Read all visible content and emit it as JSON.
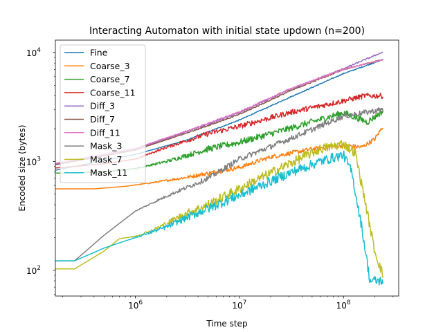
{
  "chart_data": {
    "type": "line",
    "title": "Interacting Automaton with initial state updown (n=200)",
    "xlabel": "Time step",
    "ylabel": "Encoded size (bytes)",
    "xscale": "log",
    "yscale": "log",
    "xlim": [
      170000,
      340000000
    ],
    "ylim": [
      58,
      13000
    ],
    "xticks": [
      {
        "value": 1000000,
        "base": "10",
        "exp": "6"
      },
      {
        "value": 10000000,
        "base": "10",
        "exp": "7"
      },
      {
        "value": 100000000,
        "base": "10",
        "exp": "8"
      }
    ],
    "yticks": [
      {
        "value": 100,
        "base": "10",
        "exp": "2"
      },
      {
        "value": 1000,
        "base": "10",
        "exp": "3"
      },
      {
        "value": 10000,
        "base": "10",
        "exp": "4"
      }
    ],
    "legend_position": "upper-left",
    "grid": false,
    "series": [
      {
        "name": "Fine",
        "color": "#1f77b4",
        "noise": 0.004,
        "x": [
          170000,
          1000000,
          3000000,
          10000000,
          30000000,
          100000000,
          240000000
        ],
        "y": [
          830,
          1160,
          1550,
          2400,
          3850,
          6400,
          8600
        ]
      },
      {
        "name": "Coarse_3",
        "color": "#ff7f0e",
        "noise": 0.02,
        "x": [
          170000,
          400000,
          800000,
          1500000,
          3000000,
          10000000,
          20000000,
          50000000,
          100000000,
          150000000,
          200000000,
          240000000
        ],
        "y": [
          560,
          560,
          590,
          640,
          710,
          880,
          1100,
          1300,
          1400,
          1350,
          1600,
          2100
        ]
      },
      {
        "name": "Coarse_7",
        "color": "#2ca02c",
        "noise": 0.03,
        "x": [
          170000,
          500000,
          1000000,
          2000000,
          5000000,
          10000000,
          30000000,
          100000000,
          170000000,
          240000000
        ],
        "y": [
          780,
          800,
          860,
          1000,
          1300,
          1500,
          2000,
          2800,
          2300,
          2900
        ]
      },
      {
        "name": "Coarse_11",
        "color": "#d62728",
        "noise": 0.025,
        "x": [
          170000,
          500000,
          1000000,
          2000000,
          5000000,
          10000000,
          30000000,
          100000000,
          160000000,
          240000000
        ],
        "y": [
          870,
          950,
          1050,
          1350,
          1800,
          2100,
          2800,
          3600,
          4000,
          4000
        ]
      },
      {
        "name": "Diff_3",
        "color": "#9467bd",
        "noise": 0.006,
        "x": [
          170000,
          1000000,
          3000000,
          10000000,
          30000000,
          100000000,
          240000000
        ],
        "y": [
          950,
          1300,
          1850,
          2800,
          4550,
          7100,
          10100
        ]
      },
      {
        "name": "Diff_7",
        "color": "#8c564b",
        "noise": 0.006,
        "x": [
          170000,
          1000000,
          3000000,
          10000000,
          30000000,
          100000000,
          240000000
        ],
        "y": [
          930,
          1270,
          1800,
          2700,
          4400,
          7000,
          8600
        ]
      },
      {
        "name": "Diff_11",
        "color": "#e377c2",
        "noise": 0.006,
        "x": [
          170000,
          1000000,
          3000000,
          10000000,
          30000000,
          100000000,
          240000000
        ],
        "y": [
          960,
          1320,
          1880,
          2850,
          4600,
          7000,
          8600
        ]
      },
      {
        "name": "Mask_3",
        "color": "#7f7f7f",
        "noise": 0.025,
        "x": [
          170000,
          260000,
          500000,
          1000000,
          2000000,
          5000000,
          10000000,
          30000000,
          100000000,
          240000000
        ],
        "y": [
          122,
          122,
          210,
          350,
          480,
          700,
          1050,
          1600,
          2600,
          3000
        ]
      },
      {
        "name": "Mask_7",
        "color": "#bcbd22",
        "noise": 0.045,
        "x": [
          170000,
          260000,
          500000,
          700000,
          1000000,
          1500000,
          2000000,
          3000000,
          5000000,
          10000000,
          30000000,
          60000000,
          100000000,
          130000000,
          160000000,
          200000000,
          240000000
        ],
        "y": [
          103,
          103,
          150,
          195,
          205,
          235,
          270,
          330,
          400,
          560,
          950,
          1300,
          1450,
          1200,
          450,
          150,
          90
        ]
      },
      {
        "name": "Mask_11",
        "color": "#17becf",
        "noise": 0.045,
        "x": [
          170000,
          260000,
          500000,
          1000000,
          2000000,
          3000000,
          10000000,
          30000000,
          60000000,
          100000000,
          120000000,
          150000000,
          180000000,
          240000000
        ],
        "y": [
          122,
          122,
          160,
          200,
          250,
          300,
          490,
          780,
          1000,
          1150,
          800,
          250,
          80,
          80
        ]
      }
    ]
  }
}
